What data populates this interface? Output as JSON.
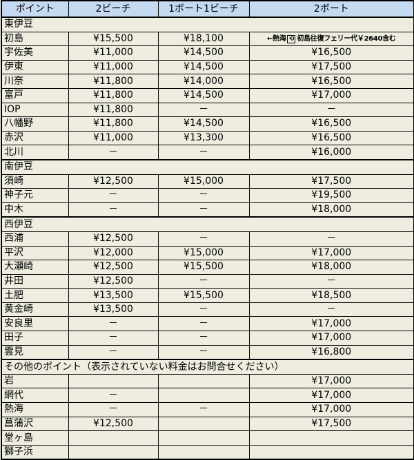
{
  "header": [
    "ポイント",
    "2ビーチ",
    "1ボート1ビーチ",
    "2ボート"
  ],
  "sections": [
    {
      "title": "東伊豆",
      "rows": [
        {
          "name": "初島",
          "c1": "¥15,500",
          "c2": "¥18,100",
          "note": {
            "prefix": "←熱海",
            "icon": "ferry-icon",
            "icon_glyph": "⟲",
            "text": "初島往復フェリー代￥2640含む"
          }
        },
        {
          "name": "宇佐美",
          "c1": "¥11,000",
          "c2": "¥14,500",
          "c3": "¥16,500"
        },
        {
          "name": "伊東",
          "c1": "¥11,000",
          "c2": "¥14,500",
          "c3": "¥17,500"
        },
        {
          "name": "川奈",
          "c1": "¥11,800",
          "c2": "¥14,000",
          "c3": "¥16,500"
        },
        {
          "name": "富戸",
          "c1": "¥11,800",
          "c2": "¥14,500",
          "c3": "¥17,000"
        },
        {
          "name": "IOP",
          "c1": "¥11,800",
          "c2": "－",
          "c3": "－"
        },
        {
          "name": "八幡野",
          "c1": "¥11,800",
          "c2": "¥14,500",
          "c3": "¥16,500"
        },
        {
          "name": "赤沢",
          "c1": "¥11,000",
          "c2": "¥13,300",
          "c3": "¥16,500"
        },
        {
          "name": "北川",
          "c1": "－",
          "c2": "－",
          "c3": "¥16,000"
        }
      ]
    },
    {
      "title": "南伊豆",
      "rows": [
        {
          "name": "須崎",
          "c1": "¥12,500",
          "c2": "¥15,000",
          "c3": "¥17,500"
        },
        {
          "name": "神子元",
          "c1": "－",
          "c2": "－",
          "c3": "¥19,500"
        },
        {
          "name": "中木",
          "c1": "－",
          "c2": "－",
          "c3": "¥18,000"
        }
      ]
    },
    {
      "title": "西伊豆",
      "rows": [
        {
          "name": "西浦",
          "c1": "¥12,500",
          "c2": "－",
          "c3": "－"
        },
        {
          "name": "平沢",
          "c1": "¥12,000",
          "c2": "¥15,000",
          "c3": "¥17,000"
        },
        {
          "name": "大瀬崎",
          "c1": "¥12,500",
          "c2": "¥15,500",
          "c3": "¥18,000"
        },
        {
          "name": "井田",
          "c1": "¥12,500",
          "c2": "－",
          "c3": "－"
        },
        {
          "name": "土肥",
          "c1": "¥13,500",
          "c2": "¥15,500",
          "c3": "¥18,500"
        },
        {
          "name": "黄金崎",
          "c1": "¥13,500",
          "c2": "－",
          "c3": "－"
        },
        {
          "name": "安良里",
          "c1": "－",
          "c2": "－",
          "c3": "¥17,000"
        },
        {
          "name": "田子",
          "c1": "－",
          "c2": "－",
          "c3": "¥17,000"
        },
        {
          "name": "雲見",
          "c1": "－",
          "c2": "－",
          "c3": "¥16,800"
        }
      ]
    },
    {
      "title": "その他のポイント（表示されていない料金はお問合せください）",
      "rows": [
        {
          "name": "岩",
          "c1": "",
          "c2": "",
          "c3": "¥17,000"
        },
        {
          "name": "網代",
          "c1": "－",
          "c2": "",
          "c3": "¥17,000"
        },
        {
          "name": "熱海",
          "c1": "－",
          "c2": "－",
          "c3": "¥17,000"
        },
        {
          "name": "菖蒲沢",
          "c1": "¥12,500",
          "c2": "",
          "c3": "¥17,500"
        },
        {
          "name": "堂ヶ島",
          "c1": "",
          "c2": "",
          "c3": ""
        },
        {
          "name": "獅子浜",
          "c1": "",
          "c2": "",
          "c3": ""
        }
      ]
    }
  ],
  "colors": {
    "header_bg": "#c5d9f1",
    "cell_bg": "#eeede0"
  }
}
